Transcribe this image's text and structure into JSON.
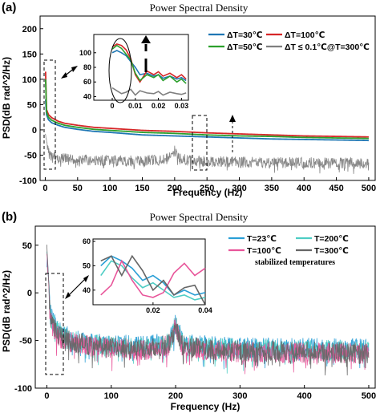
{
  "chart_data": [
    {
      "type": "line",
      "panel_label": "(a)",
      "title": "Power Spectral Density",
      "xlabel": "Frequency (Hz)",
      "ylabel": "PSD(dB rad^2/Hz)",
      "xlim": [
        -8,
        510
      ],
      "ylim": [
        -100,
        225
      ],
      "x_ticks": [
        0,
        50,
        100,
        150,
        200,
        250,
        300,
        350,
        400,
        450,
        500
      ],
      "y_ticks": [
        -100,
        -50,
        0,
        50,
        100,
        150,
        200
      ],
      "grid": false,
      "legend_position": "top-right",
      "series": [
        {
          "name": "ΔT=30℃",
          "color": "#1f77b4",
          "kind": "curve",
          "x": [
            0.5,
            2,
            5,
            10,
            20,
            30,
            50,
            75,
            100,
            150,
            200,
            250,
            300,
            350,
            400,
            450,
            500
          ],
          "values": [
            60,
            30,
            20,
            14,
            9,
            5,
            1,
            -3,
            -5,
            -10,
            -12,
            -14,
            -16,
            -18,
            -19,
            -20,
            -21
          ]
        },
        {
          "name": "ΔT=100℃",
          "color": "#d62728",
          "kind": "curve",
          "x": [
            0.5,
            2,
            5,
            10,
            20,
            30,
            50,
            75,
            100,
            150,
            200,
            250,
            300,
            350,
            400,
            450,
            500
          ],
          "values": [
            115,
            40,
            30,
            24,
            17,
            13,
            9,
            5,
            3,
            -1,
            -3,
            -6,
            -8,
            -10,
            -12,
            -13,
            -14
          ]
        },
        {
          "name": "ΔT=50℃",
          "color": "#2ca02c",
          "kind": "curve",
          "x": [
            0.5,
            2,
            5,
            10,
            20,
            30,
            50,
            75,
            100,
            150,
            200,
            250,
            300,
            350,
            400,
            450,
            500
          ],
          "values": [
            100,
            35,
            25,
            19,
            13,
            9,
            5,
            1,
            -1,
            -5,
            -7,
            -10,
            -12,
            -13,
            -15,
            -16,
            -17
          ]
        },
        {
          "name": "ΔT ≤ 0.1℃@T=300℃",
          "color": "#7f7f7f",
          "kind": "noise",
          "x": [
            0,
            2,
            5,
            10,
            20,
            50,
            100,
            150,
            190,
            196,
            200,
            205,
            220,
            260,
            300,
            350,
            400,
            450,
            500
          ],
          "values": [
            -5,
            -20,
            -35,
            -40,
            -45,
            -48,
            -50,
            -51,
            -46,
            -40,
            -30,
            -42,
            -50,
            -52,
            -53,
            -54,
            -54,
            -55,
            -55
          ]
        }
      ],
      "inset": {
        "xlim": [
          -0.008,
          0.033
        ],
        "ylim": [
          35,
          125
        ],
        "x_ticks": [
          0,
          0.01,
          0.02,
          0.03
        ],
        "y_ticks": [
          40,
          60,
          80,
          100
        ],
        "series": [
          {
            "color": "#1f77b4",
            "x": [
              0,
              0.002,
              0.004,
              0.006,
              0.008,
              0.01,
              0.012,
              0.015,
              0.018,
              0.02,
              0.022,
              0.025,
              0.028,
              0.03,
              0.032
            ],
            "values": [
              100,
              103,
              100,
              96,
              88,
              80,
              70,
              72,
              68,
              70,
              65,
              68,
              64,
              66,
              62
            ]
          },
          {
            "color": "#d62728",
            "x": [
              0,
              0.002,
              0.004,
              0.006,
              0.008,
              0.01,
              0.012,
              0.015,
              0.018,
              0.02,
              0.022,
              0.025,
              0.028,
              0.03,
              0.032
            ],
            "values": [
              108,
              112,
              110,
              104,
              92,
              70,
              60,
              75,
              70,
              74,
              68,
              72,
              66,
              70,
              64
            ]
          },
          {
            "color": "#2ca02c",
            "x": [
              0,
              0.002,
              0.004,
              0.006,
              0.008,
              0.01,
              0.012,
              0.015,
              0.018,
              0.02,
              0.022,
              0.025,
              0.028,
              0.03,
              0.032
            ],
            "values": [
              105,
              110,
              106,
              98,
              90,
              72,
              62,
              70,
              66,
              70,
              62,
              68,
              60,
              64,
              58
            ]
          },
          {
            "color": "#7f7f7f",
            "x": [
              0,
              0.002,
              0.004,
              0.006,
              0.008,
              0.01,
              0.012,
              0.015,
              0.018,
              0.02,
              0.022,
              0.025,
              0.028,
              0.03,
              0.032
            ],
            "values": [
              52,
              48,
              44,
              46,
              50,
              42,
              48,
              45,
              44,
              47,
              42,
              46,
              44,
              43,
              45
            ]
          }
        ]
      }
    },
    {
      "type": "line",
      "panel_label": "(b)",
      "title": "Power Spectral Density",
      "xlabel": "Frequency (Hz)",
      "ylabel": "PSD(dB rad^2/Hz)",
      "xlim": [
        -18,
        510
      ],
      "ylim": [
        -100,
        70
      ],
      "x_ticks": [
        0,
        100,
        200,
        300,
        400,
        500
      ],
      "y_ticks": [
        -100,
        -50,
        0,
        50
      ],
      "grid": false,
      "legend_position": "top-right",
      "annotation": "stabilized temperatures",
      "series": [
        {
          "name": "T=23℃",
          "color": "#2a9fd6",
          "kind": "noise",
          "x": [
            0,
            5,
            10,
            20,
            40,
            80,
            150,
            190,
            200,
            210,
            250,
            300,
            400,
            500
          ],
          "values": [
            50,
            -10,
            -20,
            -30,
            -38,
            -42,
            -45,
            -40,
            -20,
            -40,
            -45,
            -46,
            -47,
            -48
          ]
        },
        {
          "name": "T=200℃",
          "color": "#4ecdc4",
          "kind": "noise",
          "x": [
            0,
            5,
            10,
            20,
            40,
            80,
            150,
            190,
            200,
            210,
            250,
            300,
            400,
            500
          ],
          "values": [
            48,
            -12,
            -22,
            -32,
            -40,
            -44,
            -47,
            -42,
            -22,
            -42,
            -47,
            -48,
            -49,
            -50
          ]
        },
        {
          "name": "T=100℃",
          "color": "#e8559a",
          "kind": "noise",
          "x": [
            0,
            5,
            10,
            20,
            40,
            80,
            150,
            190,
            200,
            210,
            250,
            300,
            400,
            500
          ],
          "values": [
            45,
            -15,
            -26,
            -36,
            -42,
            -46,
            -50,
            -44,
            -25,
            -44,
            -50,
            -51,
            -52,
            -53
          ]
        },
        {
          "name": "T=300℃",
          "color": "#666666",
          "kind": "noise",
          "x": [
            0,
            5,
            10,
            20,
            40,
            80,
            150,
            190,
            200,
            210,
            250,
            300,
            400,
            500
          ],
          "values": [
            52,
            -12,
            -24,
            -34,
            -41,
            -45,
            -49,
            -43,
            -24,
            -43,
            -49,
            -50,
            -51,
            -52
          ]
        }
      ],
      "inset": {
        "xlim": [
          -0.003,
          0.04
        ],
        "ylim": [
          34,
          61
        ],
        "x_ticks": [
          0.02,
          0.04
        ],
        "y_ticks": [
          40,
          50,
          60
        ],
        "series": [
          {
            "color": "#2a9fd6",
            "x": [
              0,
              0.004,
              0.008,
              0.012,
              0.016,
              0.02,
              0.024,
              0.028,
              0.032,
              0.036,
              0.04
            ],
            "values": [
              50,
              54,
              52,
              49,
              44,
              46,
              43,
              38,
              40,
              38,
              39
            ]
          },
          {
            "color": "#4ecdc4",
            "x": [
              0,
              0.004,
              0.008,
              0.012,
              0.016,
              0.02,
              0.024,
              0.028,
              0.032,
              0.036,
              0.04
            ],
            "values": [
              46,
              52,
              50,
              45,
              41,
              43,
              40,
              37,
              38,
              36,
              37
            ]
          },
          {
            "color": "#e8559a",
            "x": [
              0,
              0.004,
              0.008,
              0.012,
              0.016,
              0.02,
              0.024,
              0.028,
              0.032,
              0.036,
              0.04
            ],
            "values": [
              38,
              42,
              52,
              44,
              38,
              37,
              39,
              47,
              51,
              46,
              49
            ]
          },
          {
            "color": "#666666",
            "x": [
              0,
              0.004,
              0.008,
              0.012,
              0.016,
              0.02,
              0.024,
              0.028,
              0.032,
              0.036,
              0.04
            ],
            "values": [
              52,
              54,
              46,
              54,
              48,
              40,
              44,
              38,
              41,
              42,
              34
            ]
          }
        ]
      }
    }
  ]
}
